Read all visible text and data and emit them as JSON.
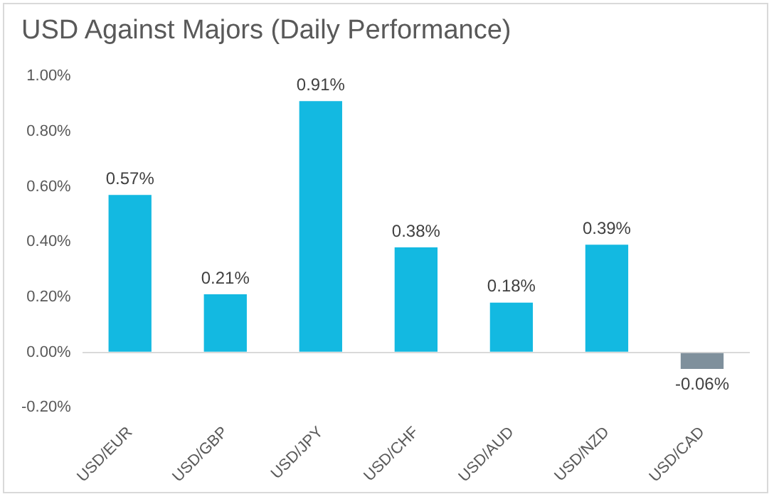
{
  "chart_data": {
    "type": "bar",
    "title": "USD Against Majors (Daily Performance)",
    "categories": [
      "USD/EUR",
      "USD/GBP",
      "USD/JPY",
      "USD/CHF",
      "USD/AUD",
      "USD/NZD",
      "USD/CAD"
    ],
    "values": [
      0.57,
      0.21,
      0.91,
      0.38,
      0.18,
      0.39,
      -0.06
    ],
    "colors": [
      "#13b9e1",
      "#13b9e1",
      "#13b9e1",
      "#13b9e1",
      "#13b9e1",
      "#13b9e1",
      "#7f909c"
    ],
    "value_labels": [
      "0.57%",
      "0.21%",
      "0.91%",
      "0.38%",
      "0.18%",
      "0.39%",
      "-0.06%"
    ],
    "ylim": [
      -0.2,
      1.0
    ],
    "yticks": [
      {
        "value": -0.2,
        "label": "-0.20%"
      },
      {
        "value": 0,
        "label": "0.00%"
      },
      {
        "value": 0.2,
        "label": "0.20%"
      },
      {
        "value": 0.4,
        "label": "0.40%"
      },
      {
        "value": 0.6,
        "label": "0.60%"
      },
      {
        "value": 0.8,
        "label": "0.80%"
      },
      {
        "value": 1.0,
        "label": "1.00%"
      }
    ],
    "legend": false
  }
}
